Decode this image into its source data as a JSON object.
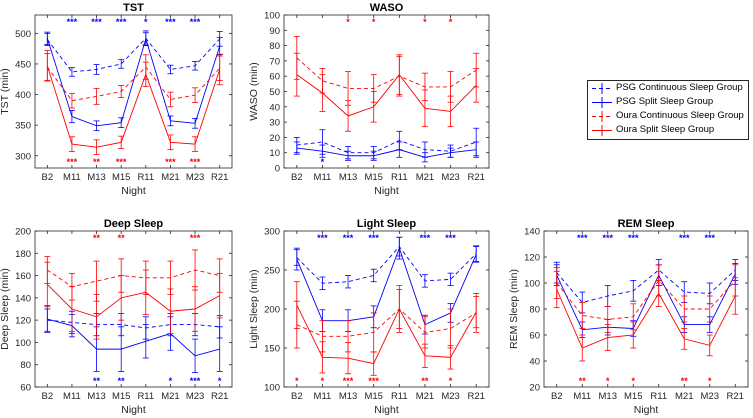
{
  "figure": {
    "legend": [
      {
        "label": "PSG Continuous Sleep Group",
        "color": "#0000ff",
        "dash": true
      },
      {
        "label": "PSG Split Sleep Group",
        "color": "#0000ff",
        "dash": false
      },
      {
        "label": "Oura Continuous Sleep Group",
        "color": "#ff0000",
        "dash": true
      },
      {
        "label": "Oura Split Sleep Group",
        "color": "#ff0000",
        "dash": false
      }
    ],
    "colors": {
      "psg": "#0000ff",
      "oura": "#ff0000",
      "axis": "#262626"
    }
  },
  "chart_data": [
    {
      "type": "line",
      "id": "tst",
      "title": "TST",
      "xlabel": "Night",
      "ylabel": "TST (min)",
      "ylim": [
        280,
        530
      ],
      "yticks": [
        300,
        350,
        400,
        450,
        500
      ],
      "categories": [
        "B2",
        "M11",
        "M13",
        "M15",
        "R11",
        "M21",
        "M23",
        "R21"
      ],
      "series": [
        {
          "name": "PSG Continuous Sleep Group",
          "values": [
            490,
            437,
            441,
            450,
            492,
            441,
            447,
            491
          ],
          "err": [
            10,
            7,
            8,
            7,
            12,
            7,
            7,
            12
          ]
        },
        {
          "name": "PSG Split Sleep Group",
          "values": [
            492,
            364,
            349,
            354,
            491,
            357,
            353,
            479
          ],
          "err": [
            10,
            10,
            8,
            8,
            10,
            8,
            8,
            14
          ]
        },
        {
          "name": "Oura Continuous Sleep Group",
          "values": [
            445,
            390,
            397,
            405,
            445,
            392,
            399,
            443
          ],
          "err": [
            22,
            12,
            13,
            10,
            20,
            12,
            12,
            20
          ]
        },
        {
          "name": "Oura Split Sleep Group",
          "values": [
            447,
            319,
            314,
            322,
            433,
            322,
            319,
            441
          ],
          "err": [
            25,
            12,
            12,
            10,
            20,
            12,
            12,
            25
          ]
        }
      ],
      "annotations_top": [
        "",
        "***",
        "***",
        "***",
        "*",
        "***",
        "***",
        ""
      ],
      "annotations_bottom": [
        "",
        "***",
        "**",
        "***",
        "",
        "***",
        "***",
        ""
      ],
      "annotation_top_color": "#0000ff",
      "annotation_bottom_color": "#ff0000"
    },
    {
      "type": "line",
      "id": "waso",
      "title": "WASO",
      "xlabel": "Night",
      "ylabel": "WASO (min)",
      "ylim": [
        0,
        100
      ],
      "yticks": [
        0,
        10,
        20,
        30,
        40,
        50,
        60,
        70,
        80,
        90,
        100
      ],
      "categories": [
        "B2",
        "M11",
        "M13",
        "M15",
        "R11",
        "M21",
        "M23",
        "R21"
      ],
      "series": [
        {
          "name": "PSG Continuous Sleep Group",
          "values": [
            15,
            17,
            10,
            10,
            18,
            12,
            11,
            17
          ],
          "err": [
            5,
            8,
            4,
            4,
            6,
            5,
            4,
            9
          ]
        },
        {
          "name": "PSG Split Sleep Group",
          "values": [
            13,
            11,
            8,
            8,
            12,
            7,
            10,
            12
          ],
          "err": [
            4,
            4,
            3,
            3,
            5,
            3,
            3,
            5
          ]
        },
        {
          "name": "Oura Continuous Sleep Group",
          "values": [
            72,
            57,
            52,
            52,
            60,
            53,
            53,
            64
          ],
          "err": [
            14,
            8,
            11,
            9,
            13,
            9,
            10,
            11
          ]
        },
        {
          "name": "Oura Split Sleep Group",
          "values": [
            61,
            49,
            34,
            40,
            61,
            39,
            37,
            54
          ],
          "err": [
            14,
            12,
            10,
            10,
            13,
            12,
            10,
            11
          ]
        }
      ],
      "annotations_top": [
        "",
        "",
        "*",
        "*",
        "",
        "*",
        "*",
        ""
      ],
      "annotations_bottom": [
        "",
        "*",
        "",
        "",
        "",
        "",
        "",
        ""
      ],
      "annotation_top_color": "#ff0000",
      "annotation_bottom_color": "#0000ff"
    },
    {
      "type": "line",
      "id": "deep",
      "title": "Deep Sleep",
      "xlabel": "Night",
      "ylabel": "Deep Sleep (min)",
      "ylim": [
        60,
        200
      ],
      "yticks": [
        60,
        80,
        100,
        120,
        140,
        160,
        180,
        200
      ],
      "categories": [
        "B2",
        "M11",
        "M13",
        "M15",
        "R11",
        "M21",
        "M23",
        "R21"
      ],
      "series": [
        {
          "name": "PSG Continuous Sleep Group",
          "values": [
            120,
            118,
            116,
            116,
            113,
            116,
            116,
            114
          ],
          "err": [
            10,
            10,
            10,
            10,
            10,
            10,
            10,
            10
          ]
        },
        {
          "name": "PSG Split Sleep Group",
          "values": [
            121,
            115,
            94,
            94,
            101,
            108,
            88,
            94
          ],
          "err": [
            12,
            10,
            20,
            20,
            15,
            15,
            15,
            20
          ]
        },
        {
          "name": "Oura Continuous Sleep Group",
          "values": [
            165,
            150,
            155,
            160,
            158,
            158,
            165,
            160
          ],
          "err": [
            12,
            12,
            18,
            15,
            15,
            15,
            18,
            15
          ]
        },
        {
          "name": "Oura Split Sleep Group",
          "values": [
            152,
            130,
            123,
            140,
            145,
            128,
            130,
            142
          ],
          "err": [
            20,
            20,
            20,
            20,
            20,
            20,
            20,
            20
          ]
        }
      ],
      "annotations_top": [
        "",
        "",
        "**",
        "**",
        "",
        "",
        "***",
        ""
      ],
      "annotations_bottom": [
        "",
        "",
        "**",
        "**",
        "",
        "*",
        "***",
        "*"
      ],
      "annotation_top_color": "#ff0000",
      "annotation_bottom_color": "#0000ff"
    },
    {
      "type": "line",
      "id": "light",
      "title": "Light Sleep",
      "xlabel": "Night",
      "ylabel": "Light Sleep (min)",
      "ylim": [
        100,
        300
      ],
      "yticks": [
        100,
        150,
        200,
        250,
        300
      ],
      "categories": [
        "B2",
        "M11",
        "M13",
        "M15",
        "R11",
        "M21",
        "M23",
        "R21"
      ],
      "series": [
        {
          "name": "PSG Continuous Sleep Group",
          "values": [
            266,
            233,
            235,
            243,
            280,
            236,
            238,
            271
          ],
          "err": [
            10,
            8,
            8,
            8,
            12,
            8,
            8,
            10
          ]
        },
        {
          "name": "PSG Split Sleep Group",
          "values": [
            264,
            185,
            185,
            190,
            278,
            180,
            195,
            270
          ],
          "err": [
            14,
            14,
            14,
            14,
            14,
            12,
            12,
            10
          ]
        },
        {
          "name": "Oura Continuous Sleep Group",
          "values": [
            180,
            165,
            165,
            170,
            200,
            170,
            175,
            195
          ],
          "err": [
            30,
            20,
            20,
            25,
            30,
            20,
            25,
            25
          ]
        },
        {
          "name": "Oura Split Sleep Group",
          "values": [
            205,
            138,
            137,
            130,
            200,
            140,
            138,
            196
          ],
          "err": [
            30,
            20,
            20,
            15,
            25,
            15,
            15,
            20
          ]
        }
      ],
      "annotations_top": [
        "",
        "***",
        "***",
        "***",
        "",
        "***",
        "***",
        ""
      ],
      "annotations_bottom": [
        "*",
        "*",
        "***",
        "***",
        "",
        "**",
        "*",
        ""
      ],
      "annotation_top_color": "#0000ff",
      "annotation_bottom_color": "#ff0000"
    },
    {
      "type": "line",
      "id": "rem",
      "title": "REM Sleep",
      "xlabel": "Night",
      "ylabel": "REM Sleep (min)",
      "ylim": [
        20,
        140
      ],
      "yticks": [
        20,
        40,
        60,
        80,
        100,
        120,
        140
      ],
      "categories": [
        "B2",
        "M11",
        "M13",
        "M15",
        "R11",
        "M21",
        "M23",
        "R21"
      ],
      "series": [
        {
          "name": "PSG Continuous Sleep Group",
          "values": [
            108,
            85,
            90,
            94,
            110,
            93,
            92,
            110
          ],
          "err": [
            8,
            8,
            8,
            8,
            8,
            8,
            8,
            8
          ]
        },
        {
          "name": "PSG Split Sleep Group",
          "values": [
            106,
            64,
            66,
            65,
            106,
            68,
            68,
            107
          ],
          "err": [
            8,
            6,
            6,
            6,
            8,
            6,
            6,
            8
          ]
        },
        {
          "name": "Oura Continuous Sleep Group",
          "values": [
            100,
            75,
            72,
            74,
            102,
            80,
            80,
            102
          ],
          "err": [
            12,
            10,
            10,
            10,
            12,
            10,
            10,
            12
          ]
        },
        {
          "name": "Oura Split Sleep Group",
          "values": [
            95,
            50,
            58,
            60,
            92,
            57,
            52,
            90
          ],
          "err": [
            14,
            10,
            10,
            10,
            10,
            8,
            8,
            14
          ]
        }
      ],
      "annotations_top": [
        "",
        "***",
        "***",
        "***",
        "",
        "***",
        "***",
        ""
      ],
      "annotations_bottom": [
        "",
        "**",
        "*",
        "*",
        "",
        "**",
        "*",
        ""
      ],
      "annotation_top_color": "#0000ff",
      "annotation_bottom_color": "#ff0000"
    }
  ]
}
